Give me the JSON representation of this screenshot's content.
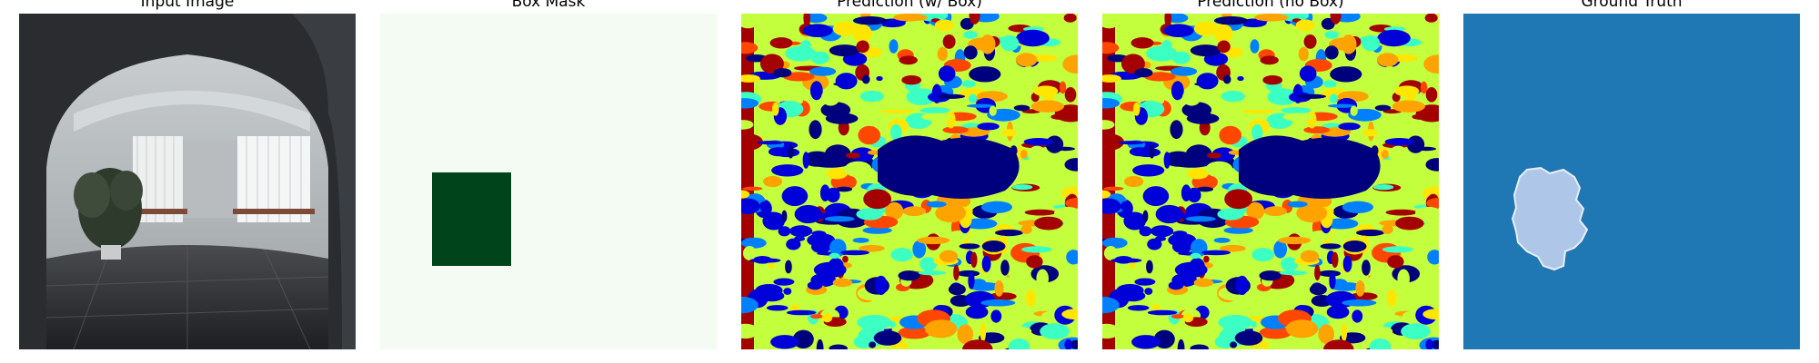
{
  "figure": {
    "panels": [
      {
        "title": "Input Image"
      },
      {
        "title": "Box Mask"
      },
      {
        "title": "Prediction (w/ Box)"
      },
      {
        "title": "Prediction (no Box)"
      },
      {
        "title": "Ground Truth"
      }
    ]
  },
  "colors": {
    "mask_background": "#f4fbf2",
    "mask_box": "#00441b",
    "ground_truth_background": "#1f77b4",
    "ground_truth_region": "#aec7e8",
    "prediction_palette": [
      "#00007f",
      "#0000d8",
      "#0080ff",
      "#3cffc3",
      "#c3ff3c",
      "#ffe600",
      "#ffa300",
      "#ff4700",
      "#a40000"
    ]
  }
}
